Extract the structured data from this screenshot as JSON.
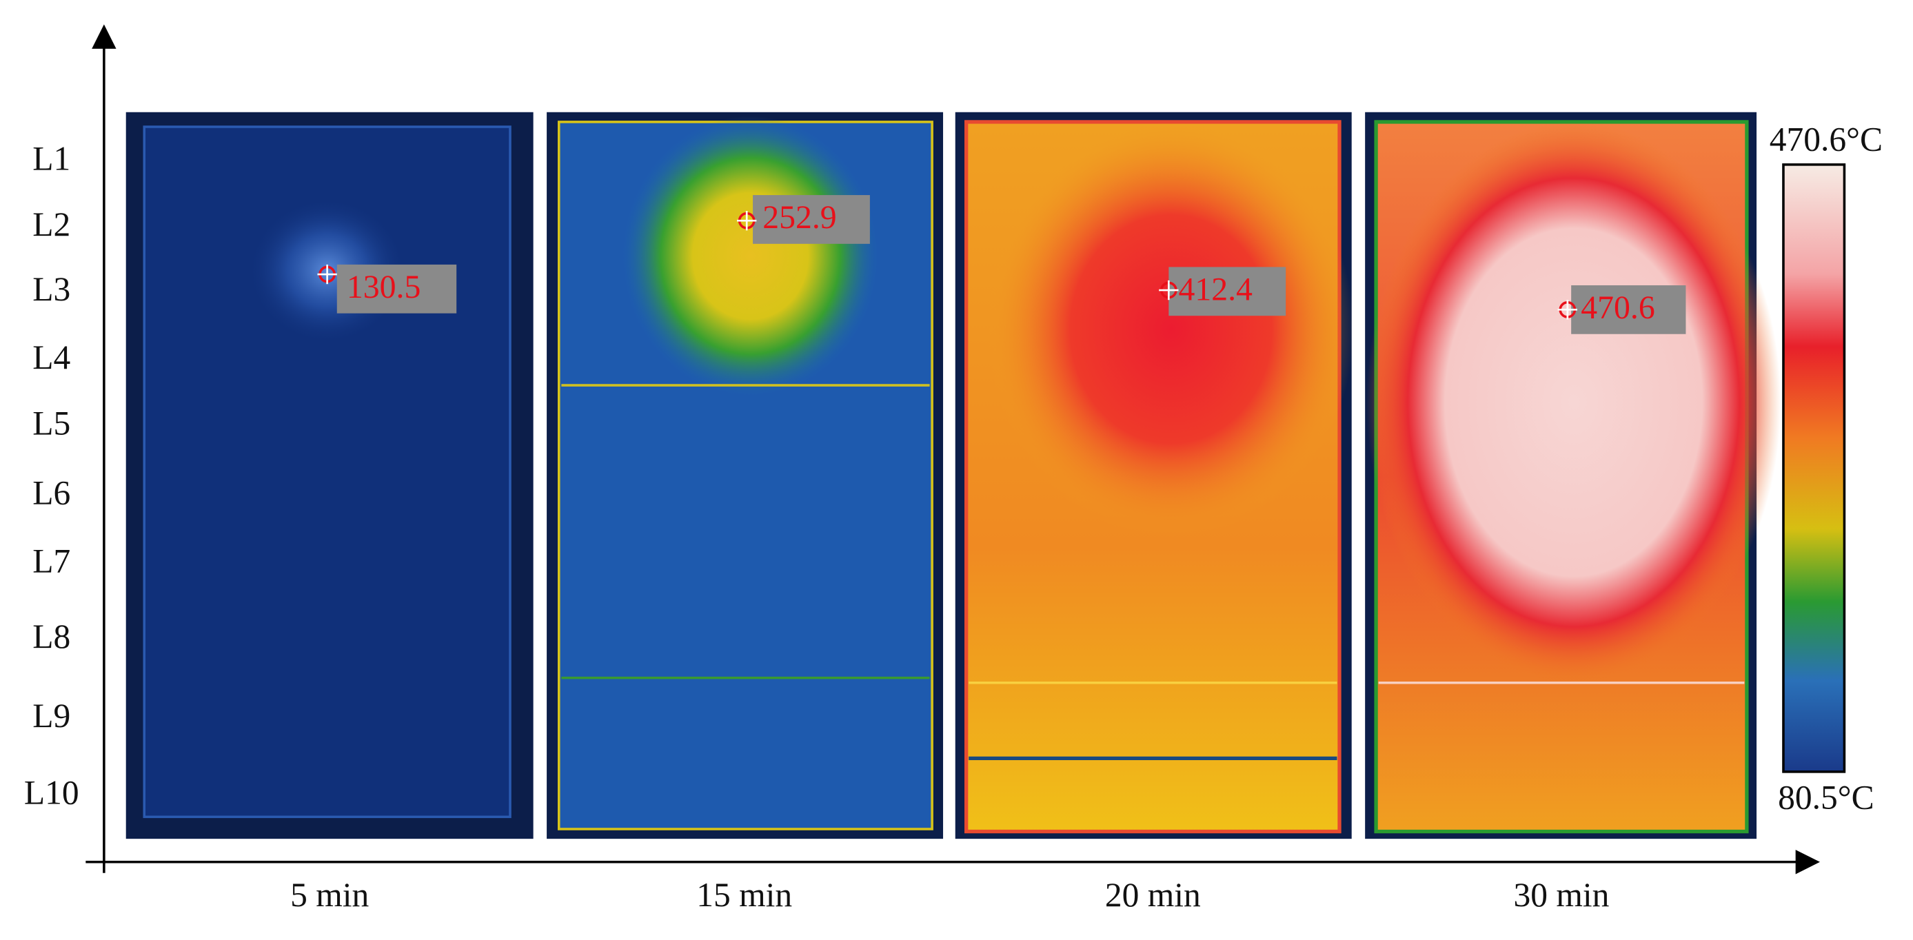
{
  "rows": [
    "L1",
    "L2",
    "L3",
    "L4",
    "L5",
    "L6",
    "L7",
    "L8",
    "L9",
    "L10"
  ],
  "panels": [
    {
      "time": "5 min",
      "peak": "130.5"
    },
    {
      "time": "15 min",
      "peak": "252.9"
    },
    {
      "time": "20 min",
      "peak": "412.4"
    },
    {
      "time": "30 min",
      "peak": "470.6"
    }
  ],
  "colorbar": {
    "max": "470.6°C",
    "min": "80.5°C"
  }
}
